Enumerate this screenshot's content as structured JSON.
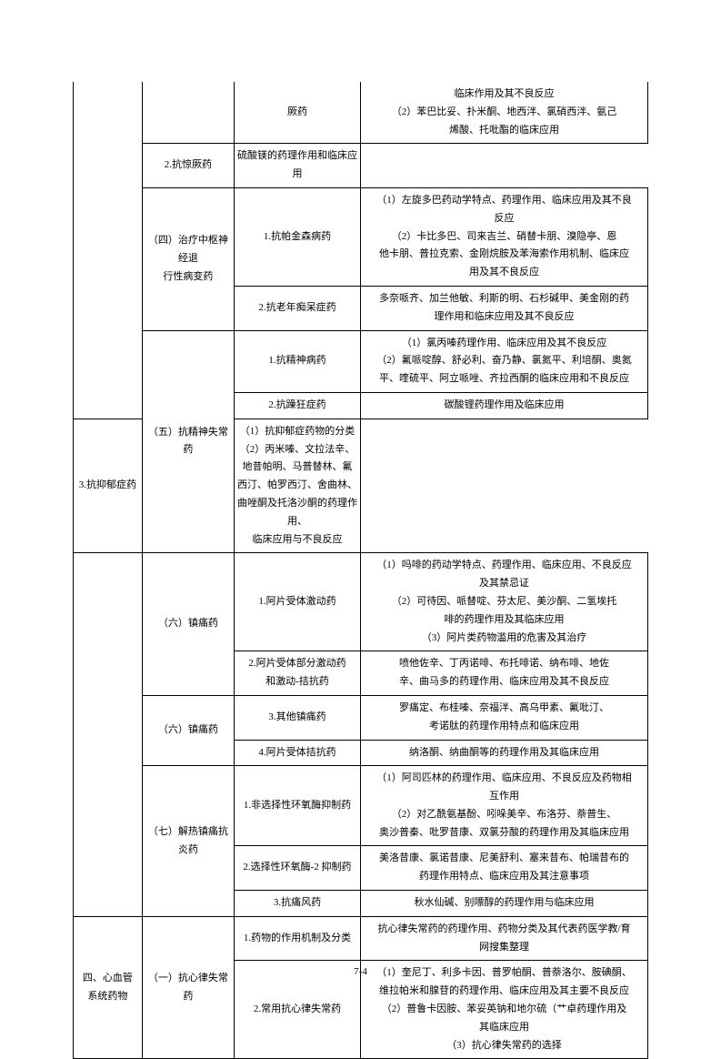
{
  "rows": [
    {
      "c1": "",
      "c2": "",
      "c3": "厥药",
      "c4": "临床作用及其不良反应\n（2）苯巴比妥、扑米酮、地西泮、氯硝西泮、氨己\n烯酸、托吡酯的临床应用",
      "c1span": 6,
      "c2span": 1,
      "c1empty": true,
      "c2empty": true,
      "topopen": true
    },
    {
      "c3": "2.抗惊厥药",
      "c4": "硫酸镁的药理作用和临床应用"
    },
    {
      "c2": "（四）治疗中枢神经退\n行性病变药",
      "c3": "1.抗帕金森病药",
      "c4": "（1）左旋多巴药动学特点、药理作用、临床应用及其不良\n反应\n（2）卡比多巴、司来吉兰、硝替卡朋、溴隐亭、恩\n他卡朋、普拉克索、金刚烷胺及苯海索作用机制、临床应\n用及其不良反应",
      "c2span": 2
    },
    {
      "c3": "2.抗老年痴呆症药",
      "c4": "多奈哌齐、加兰他敏、利斯的明、石杉碱甲、美金刚的药\n理作用和临床应用及其不良反应"
    },
    {
      "c2": "（五）抗精神失常药",
      "c3": "1.抗精神病药",
      "c4": "（1）氯丙嗪药理作用、临床应用及其不良反应\n（2）氟哌啶醇、舒必利、奋乃静、氯氮平、利培酮、奥氮\n平、喹硫平、阿立哌唑、齐拉西酮的临床应用和不良反应",
      "c2span": 3
    },
    {
      "c3": "2.抗躁狂症药",
      "c4": "碳酸锂药理作用及临床应用"
    },
    {
      "c3": "3.抗抑郁症药",
      "c4": "（1）抗抑郁症药物的分类\n（2）丙米嗪、文拉法辛、地昔帕明、马普替林、氟\n西汀、帕罗西汀、舍曲林、曲唑酮及托洛沙酮的药理作用、\n临床应用与不良反应"
    },
    {
      "c1": "",
      "c2": "（六）镇痛药",
      "c3": "1.阿片受体激动药",
      "c4": "（1）吗啡的药动学特点、药理作用、临床应用、不良反应\n及其禁忌证\n（2）可待因、哌替啶、芬太尼、美沙酮、二氢埃托\n啡的药理作用及其临床应用\n（3）阿片类药物滥用的危害及其治疗",
      "c1span": 7,
      "c2span": 2,
      "c1empty": true
    },
    {
      "c3": "2.阿片受体部分激动药\n和激动-拮抗药",
      "c4": "喷他佐辛、丁丙诺啡、布托啡诺、纳布啡、地佐\n辛、曲马多的药理作用、临床应用及其不良反应"
    },
    {
      "c2": "（六）镇痛药",
      "c3": "3.其他镇痛药",
      "c4": "罗痛定、布桂嗪、奈福泮、高乌甲素、氟吡汀、\n考诺肽的药理作用特点和临床应用",
      "c2span": 2
    },
    {
      "c3": "4.阿片受体拮抗药",
      "c4": "纳洛酮、纳曲酮等的药理作用及其临床应用"
    },
    {
      "c2": "（七）解热镇痛抗炎药",
      "c3": "1.非选择性环氧酶抑制药",
      "c4": "（1）阿司匹林的药理作用、临床应用、不良反应及药物相\n互作用\n（2）对乙酰氨基酚、吲哚美辛、布洛芬、萘普生、\n奥沙普秦、吡罗昔康、双氯芬酸的药理作用及其临床应用",
      "c2span": 3
    },
    {
      "c3": "2.选择性环氧酶-2 抑制药",
      "c4": "美洛昔康、氯诺昔康、尼美舒利、塞来昔布、帕瑞昔布的\n药理作用特点、临床应用及其注意事项"
    },
    {
      "c3": "3.抗痛风药",
      "c4": "秋水仙碱、别嘌醇的药理作用与临床应用"
    },
    {
      "c1": "四、心血管\n系统药物",
      "c2": "（一）抗心律失常药",
      "c3": "1.药物的作用机制及分类",
      "c4": "抗心律失常药的药理作用、药物分类及其代表药医学教/育\n网搜集整理",
      "c1span": 2,
      "c2span": 2
    },
    {
      "c3": "2.常用抗心律失常药",
      "c4": "（1）奎尼丁、利多卡因、普罗帕酮、普萘洛尔、胺碘酮、\n维拉帕米和腺苷的药理作用、临床应用及其主要不良反应\n（2）普鲁卡因胺、苯妥英钠和地尔硫（艹卓药理作用及\n其临床应用\n（3）抗心律失常药的选择"
    }
  ],
  "footer": "7-4"
}
